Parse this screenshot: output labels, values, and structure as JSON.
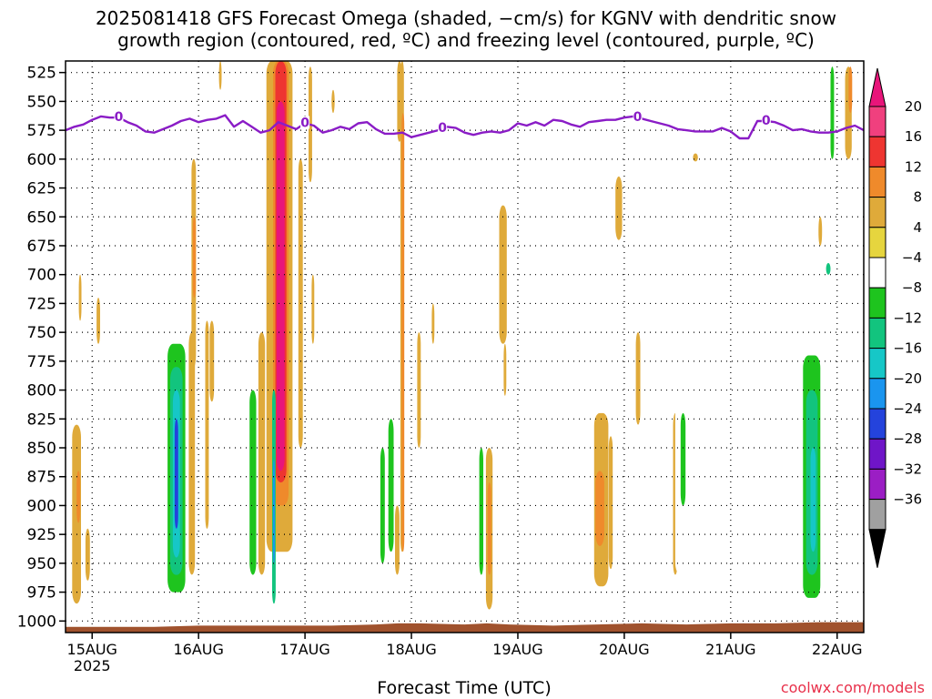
{
  "header": {
    "title_line1": "2025081418 GFS Forecast Omega (shaded, −cm/s) for KGNV with dendritic snow",
    "title_line2": "growth region (contoured, red, ºC) and freezing level (contoured, purple, ºC)"
  },
  "footer": {
    "xlabel": "Forecast Time (UTC)",
    "credit": "coolwx.com/models"
  },
  "chart_data": {
    "type": "heatmap",
    "title": "2025081418 GFS Forecast Omega (shaded, −cm/s) for KGNV with dendritic snow growth region (contoured, red, ºC) and freezing level (contoured, purple, ºC)",
    "xlabel": "Forecast Time (UTC)",
    "ylabel": "",
    "x_ticks": [
      "15AUG",
      "16AUG",
      "17AUG",
      "18AUG",
      "19AUG",
      "20AUG",
      "21AUG",
      "22AUG"
    ],
    "x_tick_year": "2025",
    "x_tick_hours": [
      6,
      30,
      54,
      78,
      102,
      126,
      150,
      174
    ],
    "xlim_hours": [
      0,
      180
    ],
    "y_ticks": [
      525,
      550,
      575,
      600,
      625,
      650,
      675,
      700,
      725,
      750,
      775,
      800,
      825,
      850,
      875,
      900,
      925,
      950,
      975,
      1000
    ],
    "ylim_hPa": [
      1010,
      515
    ],
    "grid": true,
    "colorbar": {
      "labels": [
        "20",
        "16",
        "12",
        "8",
        "4",
        "−4",
        "−8",
        "−12",
        "−16",
        "−20",
        "−24",
        "−28",
        "−32",
        "−36"
      ],
      "bounds": [
        20,
        16,
        12,
        8,
        4,
        -4,
        -8,
        -12,
        -16,
        -20,
        -24,
        -28,
        -32,
        -36
      ],
      "colors": [
        "#f0407e",
        "#ee3531",
        "#ef8a2b",
        "#dfaa3a",
        "#e6d53e",
        "#ffffff",
        "#1ec41e",
        "#12c47e",
        "#16c7c7",
        "#1a95ef",
        "#2443dc",
        "#6f15c8",
        "#9b1ec4",
        "#a0a0a0"
      ],
      "top_color": "#e8157a",
      "bottom_color": "#000000"
    },
    "freezing_level": {
      "label": "0",
      "color": "#8a1cc6",
      "label_hours": [
        12,
        54,
        85,
        129,
        158
      ],
      "hours": [
        0,
        2,
        4,
        6,
        8,
        10,
        12,
        14,
        16,
        18,
        20,
        22,
        24,
        26,
        28,
        30,
        32,
        34,
        36,
        38,
        40,
        42,
        44,
        46,
        48,
        50,
        52,
        54,
        56,
        58,
        60,
        62,
        64,
        66,
        68,
        70,
        72,
        74,
        76,
        78,
        80,
        82,
        84,
        86,
        88,
        90,
        92,
        94,
        96,
        98,
        100,
        102,
        104,
        106,
        108,
        110,
        112,
        114,
        116,
        118,
        120,
        122,
        124,
        126,
        128,
        130,
        132,
        134,
        136,
        138,
        140,
        142,
        144,
        146,
        148,
        150,
        152,
        154,
        156,
        158,
        160,
        162,
        164,
        166,
        168,
        170,
        172,
        174,
        176,
        178,
        180
      ],
      "hPa": [
        575,
        572,
        570,
        566,
        563,
        564,
        564,
        568,
        571,
        576,
        577,
        574,
        571,
        567,
        565,
        568,
        566,
        565,
        562,
        572,
        567,
        572,
        577,
        575,
        568,
        571,
        574,
        569,
        571,
        577,
        575,
        572,
        574,
        569,
        568,
        574,
        578,
        578,
        577,
        581,
        579,
        577,
        575,
        572,
        573,
        577,
        579,
        577,
        576,
        577,
        575,
        569,
        571,
        568,
        571,
        566,
        567,
        570,
        572,
        568,
        567,
        566,
        566,
        564,
        563,
        565,
        567,
        569,
        571,
        574,
        575,
        576,
        576,
        576,
        573,
        576,
        582,
        582,
        567,
        567,
        568,
        571,
        575,
        574,
        576,
        577,
        577,
        576,
        573,
        571,
        575
      ]
    },
    "omega_cells": [
      {
        "h0": 1.5,
        "h1": 3.5,
        "p0": 830,
        "p1": 985,
        "v": 6
      },
      {
        "h0": 2.5,
        "h1": 3.3,
        "p0": 870,
        "p1": 915,
        "v": 10
      },
      {
        "h0": 4.5,
        "h1": 5.5,
        "p0": 920,
        "p1": 965,
        "v": 5
      },
      {
        "h0": 3.0,
        "h1": 3.6,
        "p0": 700,
        "p1": 740,
        "v": 5
      },
      {
        "h0": 7.0,
        "h1": 7.8,
        "p0": 720,
        "p1": 760,
        "v": 5
      },
      {
        "h0": 5.5,
        "h1": 6.5,
        "p0": 735,
        "p1": 790,
        "v": -6
      },
      {
        "h0": 22.3,
        "h1": 27.8,
        "p0": 735,
        "p1": 985,
        "v": -6
      },
      {
        "h0": 23.0,
        "h1": 27.0,
        "p0": 760,
        "p1": 975,
        "v": -10
      },
      {
        "h0": 23.6,
        "h1": 26.4,
        "p0": 780,
        "p1": 960,
        "v": -14
      },
      {
        "h0": 24.2,
        "h1": 25.8,
        "p0": 800,
        "p1": 945,
        "v": -18
      },
      {
        "h0": 24.6,
        "h1": 25.4,
        "p0": 825,
        "p1": 920,
        "v": -26
      },
      {
        "h0": 27.8,
        "h1": 29.2,
        "p0": 750,
        "p1": 960,
        "v": 5
      },
      {
        "h0": 28.4,
        "h1": 29.4,
        "p0": 600,
        "p1": 780,
        "v": 5
      },
      {
        "h0": 28.7,
        "h1": 29.4,
        "p0": 650,
        "p1": 720,
        "v": 10
      },
      {
        "h0": 30.8,
        "h1": 31.7,
        "p0": 515,
        "p1": 575,
        "v": -6
      },
      {
        "h0": 31.5,
        "h1": 32.3,
        "p0": 740,
        "p1": 920,
        "v": 5
      },
      {
        "h0": 32.8,
        "h1": 33.6,
        "p0": 515,
        "p1": 910,
        "v": -6
      },
      {
        "h0": 32.5,
        "h1": 33.5,
        "p0": 740,
        "p1": 810,
        "v": 5
      },
      {
        "h0": 34.6,
        "h1": 35.2,
        "p0": 515,
        "p1": 540,
        "v": 5
      },
      {
        "h0": 40.5,
        "h1": 43.5,
        "p0": 755,
        "p1": 985,
        "v": -6
      },
      {
        "h0": 41.5,
        "h1": 43.0,
        "p0": 800,
        "p1": 960,
        "v": -10
      },
      {
        "h0": 43.5,
        "h1": 45.0,
        "p0": 750,
        "p1": 960,
        "v": 5
      },
      {
        "h0": 45.5,
        "h1": 47.5,
        "p0": 515,
        "p1": 1000,
        "v": -6
      },
      {
        "h0": 45.3,
        "h1": 51.2,
        "p0": 515,
        "p1": 940,
        "v": 5
      },
      {
        "h0": 46.8,
        "h1": 50.3,
        "p0": 515,
        "p1": 900,
        "v": 10
      },
      {
        "h0": 47.3,
        "h1": 49.8,
        "p0": 515,
        "p1": 880,
        "v": 14
      },
      {
        "h0": 47.6,
        "h1": 49.4,
        "p0": 550,
        "p1": 870,
        "v": 22
      },
      {
        "h0": 46.6,
        "h1": 47.4,
        "p0": 800,
        "p1": 985,
        "v": -14
      },
      {
        "h0": 46.8,
        "h1": 47.2,
        "p0": 860,
        "p1": 950,
        "v": -22
      },
      {
        "h0": 51.3,
        "h1": 52.2,
        "p0": 560,
        "p1": 900,
        "v": -6
      },
      {
        "h0": 52.5,
        "h1": 53.5,
        "p0": 600,
        "p1": 850,
        "v": 5
      },
      {
        "h0": 53.8,
        "h1": 54.5,
        "p0": 600,
        "p1": 700,
        "v": -6
      },
      {
        "h0": 54.8,
        "h1": 55.6,
        "p0": 520,
        "p1": 620,
        "v": 5
      },
      {
        "h0": 55.5,
        "h1": 56.1,
        "p0": 700,
        "p1": 760,
        "v": 5
      },
      {
        "h0": 60.0,
        "h1": 60.7,
        "p0": 540,
        "p1": 560,
        "v": 5
      },
      {
        "h0": 63.6,
        "h1": 64.2,
        "p0": 515,
        "p1": 530,
        "v": -6
      },
      {
        "h0": 66.2,
        "h1": 67.2,
        "p0": 780,
        "p1": 960,
        "v": -6
      },
      {
        "h0": 70.0,
        "h1": 71.0,
        "p0": 790,
        "p1": 985,
        "v": -6
      },
      {
        "h0": 71.0,
        "h1": 72.0,
        "p0": 850,
        "p1": 950,
        "v": -10
      },
      {
        "h0": 72.5,
        "h1": 74.5,
        "p0": 750,
        "p1": 975,
        "v": -6
      },
      {
        "h0": 72.8,
        "h1": 74.0,
        "p0": 825,
        "p1": 940,
        "v": -10
      },
      {
        "h0": 74.8,
        "h1": 75.8,
        "p0": 515,
        "p1": 585,
        "v": 5
      },
      {
        "h0": 74.3,
        "h1": 75.3,
        "p0": 900,
        "p1": 960,
        "v": 5
      },
      {
        "h0": 75.5,
        "h1": 76.3,
        "p0": 515,
        "p1": 940,
        "v": 5
      },
      {
        "h0": 75.8,
        "h1": 76.4,
        "p0": 560,
        "p1": 940,
        "v": 10
      },
      {
        "h0": 76.6,
        "h1": 77.3,
        "p0": 620,
        "p1": 660,
        "v": -6
      },
      {
        "h0": 77.8,
        "h1": 78.6,
        "p0": 750,
        "p1": 960,
        "v": -6
      },
      {
        "h0": 78.8,
        "h1": 79.4,
        "p0": 645,
        "p1": 660,
        "v": -6
      },
      {
        "h0": 79.3,
        "h1": 80.1,
        "p0": 750,
        "p1": 850,
        "v": 5
      },
      {
        "h0": 82.6,
        "h1": 83.2,
        "p0": 725,
        "p1": 760,
        "v": 5
      },
      {
        "h0": 80.8,
        "h1": 82.0,
        "p0": 800,
        "p1": 955,
        "v": -6
      },
      {
        "h0": 87.0,
        "h1": 88.3,
        "p0": 775,
        "p1": 970,
        "v": -6
      },
      {
        "h0": 90.0,
        "h1": 91.0,
        "p0": 830,
        "p1": 970,
        "v": -6
      },
      {
        "h0": 93.0,
        "h1": 94.5,
        "p0": 750,
        "p1": 975,
        "v": -6
      },
      {
        "h0": 93.3,
        "h1": 94.2,
        "p0": 850,
        "p1": 960,
        "v": -10
      },
      {
        "h0": 94.8,
        "h1": 96.3,
        "p0": 850,
        "p1": 990,
        "v": 5
      },
      {
        "h0": 95.2,
        "h1": 96.0,
        "p0": 880,
        "p1": 960,
        "v": 10
      },
      {
        "h0": 97.8,
        "h1": 99.5,
        "p0": 640,
        "p1": 760,
        "v": 5
      },
      {
        "h0": 98.2,
        "h1": 98.8,
        "p0": 515,
        "p1": 545,
        "v": -6
      },
      {
        "h0": 98.8,
        "h1": 99.4,
        "p0": 760,
        "p1": 805,
        "v": 5
      },
      {
        "h0": 101.6,
        "h1": 102.4,
        "p0": 825,
        "p1": 890,
        "v": -6
      },
      {
        "h0": 115.3,
        "h1": 116.1,
        "p0": 840,
        "p1": 960,
        "v": -6
      },
      {
        "h0": 119.2,
        "h1": 122.4,
        "p0": 820,
        "p1": 970,
        "v": 5
      },
      {
        "h0": 119.5,
        "h1": 121.5,
        "p0": 870,
        "p1": 935,
        "v": 10
      },
      {
        "h0": 122.5,
        "h1": 123.4,
        "p0": 840,
        "p1": 955,
        "v": 5
      },
      {
        "h0": 124.0,
        "h1": 125.5,
        "p0": 615,
        "p1": 670,
        "v": 5
      },
      {
        "h0": 128.6,
        "h1": 129.6,
        "p0": 750,
        "p1": 830,
        "v": 5
      },
      {
        "h0": 137.0,
        "h1": 138.0,
        "p0": 820,
        "p1": 960,
        "v": 5
      },
      {
        "h0": 137.5,
        "h1": 140.5,
        "p0": 790,
        "p1": 960,
        "v": -6
      },
      {
        "h0": 138.7,
        "h1": 139.8,
        "p0": 820,
        "p1": 900,
        "v": -10
      },
      {
        "h0": 140.5,
        "h1": 142.2,
        "p0": 790,
        "p1": 885,
        "v": -6
      },
      {
        "h0": 141.5,
        "h1": 142.6,
        "p0": 595,
        "p1": 602,
        "v": 5
      },
      {
        "h0": 165.7,
        "h1": 170.6,
        "p0": 700,
        "p1": 985,
        "v": -6
      },
      {
        "h0": 166.3,
        "h1": 170.2,
        "p0": 770,
        "p1": 980,
        "v": -10
      },
      {
        "h0": 167.0,
        "h1": 169.6,
        "p0": 800,
        "p1": 960,
        "v": -14
      },
      {
        "h0": 168.0,
        "h1": 169.2,
        "p0": 850,
        "p1": 940,
        "v": -18
      },
      {
        "h0": 169.8,
        "h1": 170.6,
        "p0": 650,
        "p1": 675,
        "v": 5
      },
      {
        "h0": 171.2,
        "h1": 173.0,
        "p0": 520,
        "p1": 745,
        "v": -6
      },
      {
        "h0": 171.5,
        "h1": 172.5,
        "p0": 690,
        "p1": 700,
        "v": -14
      },
      {
        "h0": 172.5,
        "h1": 173.3,
        "p0": 520,
        "p1": 600,
        "v": -10
      },
      {
        "h0": 173.5,
        "h1": 175.2,
        "p0": 520,
        "p1": 630,
        "v": -6
      },
      {
        "h0": 174.5,
        "h1": 175.5,
        "p0": 820,
        "p1": 960,
        "v": -6
      },
      {
        "h0": 175.8,
        "h1": 177.3,
        "p0": 520,
        "p1": 600,
        "v": 5
      },
      {
        "h0": 176.6,
        "h1": 177.4,
        "p0": 520,
        "p1": 560,
        "v": 10
      },
      {
        "h0": 177.5,
        "h1": 178.5,
        "p0": 780,
        "p1": 815,
        "v": -6
      }
    ],
    "terrain": {
      "color": "#a0522d",
      "hours": [
        0,
        10,
        20,
        30,
        40,
        50,
        60,
        70,
        75,
        80,
        90,
        95,
        100,
        110,
        120,
        130,
        140,
        150,
        160,
        170,
        180
      ],
      "hPa": [
        1005,
        1005,
        1005,
        1004,
        1004,
        1004,
        1004,
        1003,
        1002,
        1002,
        1003,
        1002,
        1003,
        1004,
        1003,
        1002,
        1003,
        1002,
        1002,
        1001,
        1001
      ]
    }
  }
}
